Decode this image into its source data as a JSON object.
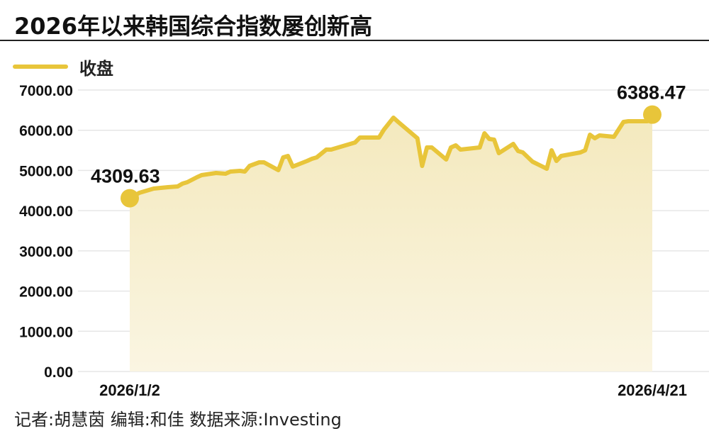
{
  "title": "2026年以来韩国综合指数屡创新高",
  "footer": "记者:胡慧茵   编辑:和佳   数据来源:Investing",
  "chart_data": {
    "type": "area",
    "title": "2026年以来韩国综合指数屡创新高",
    "legend": {
      "position": "top-left",
      "entries": [
        "收盘"
      ]
    },
    "series": [
      {
        "name": "收盘",
        "color": "#e8c53a",
        "fill": "#f5ecc4",
        "points": [
          [
            "2026-01-02",
            4309.63
          ],
          [
            "2026-01-04",
            4443
          ],
          [
            "2026-01-07",
            4549
          ],
          [
            "2026-01-10",
            4584
          ],
          [
            "2026-01-12",
            4602
          ],
          [
            "2026-01-13",
            4673
          ],
          [
            "2026-01-14",
            4708
          ],
          [
            "2026-01-16",
            4831
          ],
          [
            "2026-01-17",
            4884
          ],
          [
            "2026-01-20",
            4937
          ],
          [
            "2026-01-22",
            4919
          ],
          [
            "2026-01-23",
            4972
          ],
          [
            "2026-01-25",
            4990
          ],
          [
            "2026-01-26",
            4972
          ],
          [
            "2026-01-27",
            5113
          ],
          [
            "2026-01-29",
            5202
          ],
          [
            "2026-01-30",
            5202
          ],
          [
            "2026-02-02",
            5008
          ],
          [
            "2026-02-03",
            5325
          ],
          [
            "2026-02-04",
            5360
          ],
          [
            "2026-02-05",
            5096
          ],
          [
            "2026-02-08",
            5237
          ],
          [
            "2026-02-09",
            5290
          ],
          [
            "2026-02-10",
            5325
          ],
          [
            "2026-02-12",
            5519
          ],
          [
            "2026-02-13",
            5519
          ],
          [
            "2026-02-18",
            5695
          ],
          [
            "2026-02-19",
            5819
          ],
          [
            "2026-02-23",
            5819
          ],
          [
            "2026-02-24",
            6013
          ],
          [
            "2026-02-26",
            6312
          ],
          [
            "2026-02-27",
            6206
          ],
          [
            "2026-03-03",
            5801
          ],
          [
            "2026-03-04",
            5113
          ],
          [
            "2026-03-05",
            5572
          ],
          [
            "2026-03-06",
            5572
          ],
          [
            "2026-03-09",
            5272
          ],
          [
            "2026-03-10",
            5572
          ],
          [
            "2026-03-11",
            5625
          ],
          [
            "2026-03-12",
            5519
          ],
          [
            "2026-03-16",
            5572
          ],
          [
            "2026-03-17",
            5924
          ],
          [
            "2026-03-18",
            5783
          ],
          [
            "2026-03-19",
            5766
          ],
          [
            "2026-03-20",
            5431
          ],
          [
            "2026-03-23",
            5660
          ],
          [
            "2026-03-24",
            5484
          ],
          [
            "2026-03-25",
            5448
          ],
          [
            "2026-03-27",
            5219
          ],
          [
            "2026-03-30",
            5043
          ],
          [
            "2026-03-31",
            5501
          ],
          [
            "2026-04-01",
            5237
          ],
          [
            "2026-04-02",
            5360
          ],
          [
            "2026-04-06",
            5448
          ],
          [
            "2026-04-07",
            5501
          ],
          [
            "2026-04-08",
            5889
          ],
          [
            "2026-04-09",
            5801
          ],
          [
            "2026-04-10",
            5872
          ],
          [
            "2026-04-13",
            5836
          ],
          [
            "2026-04-15",
            6206
          ],
          [
            "2026-04-16",
            6224
          ],
          [
            "2026-04-20",
            6224
          ],
          [
            "2026-04-21",
            6388.47
          ]
        ]
      }
    ],
    "annotations": [
      {
        "date": "2026-01-02",
        "label": "4309.63"
      },
      {
        "date": "2026-04-21",
        "label": "6388.47"
      }
    ],
    "x_tick_labels": [
      "2026/1/2",
      "2026/4/21"
    ],
    "x_range": [
      "2026-01-02",
      "2026-04-21"
    ],
    "y_tick_labels": [
      "0.00",
      "1000.00",
      "2000.00",
      "3000.00",
      "4000.00",
      "5000.00",
      "6000.00",
      "7000.00"
    ],
    "y_ticks": [
      0,
      1000,
      2000,
      3000,
      4000,
      5000,
      6000,
      7000
    ],
    "ylim": [
      0,
      7000
    ],
    "grid": true
  }
}
